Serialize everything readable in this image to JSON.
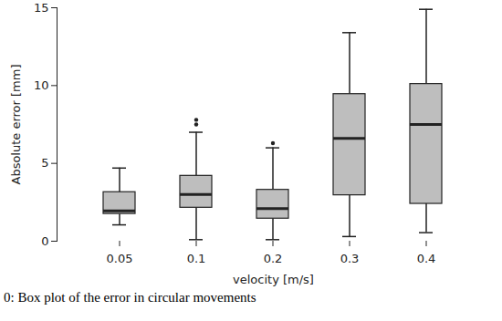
{
  "chart_data": {
    "type": "box",
    "x_label": "velocity [m/s]",
    "y_label": "Absolute error [mm]",
    "caption": "0:  Box plot of the error in circular movements",
    "categories": [
      "0.05",
      "0.1",
      "0.2",
      "0.3",
      "0.4"
    ],
    "min": [
      1.05,
      0.1,
      0.1,
      0.3,
      0.55
    ],
    "q1": [
      1.75,
      2.15,
      1.45,
      2.95,
      2.4
    ],
    "median": [
      1.95,
      3.0,
      2.1,
      6.6,
      7.5
    ],
    "q3": [
      3.15,
      4.2,
      3.3,
      9.45,
      10.1
    ],
    "max": [
      4.7,
      7.0,
      6.0,
      13.4,
      14.9
    ],
    "outliers": [
      [],
      [
        7.5,
        7.8
      ],
      [
        6.3
      ],
      [],
      []
    ],
    "color": "#bebebe",
    "ylim": [
      0,
      15
    ],
    "yticks": [
      0,
      5,
      10,
      15
    ]
  }
}
